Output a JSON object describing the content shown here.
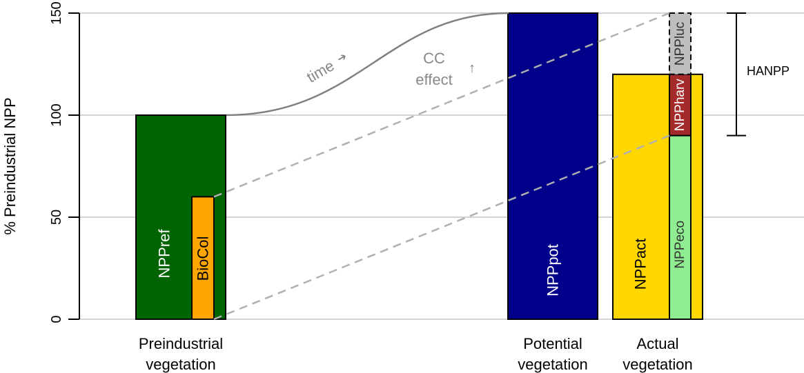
{
  "chart_data": {
    "type": "bar",
    "ylabel": "% Preindustrial NPP",
    "ylim": [
      0,
      150
    ],
    "yticks": [
      0,
      50,
      100,
      150
    ],
    "grid": true,
    "categories": [
      [
        "Preindustrial",
        "vegetation"
      ],
      [
        "Potential",
        "vegetation"
      ],
      [
        "Actual",
        "vegetation"
      ]
    ],
    "bars": [
      {
        "name": "NPPref",
        "group": 0,
        "value": 100,
        "color": "#006400",
        "label_color": "#ffffff"
      },
      {
        "name": "BioCol",
        "group": 0,
        "value": 60,
        "color": "#FFA500",
        "label_color": "#000000",
        "sub": true
      },
      {
        "name": "NPPpot",
        "group": 1,
        "value": 150,
        "color": "#00008B",
        "label_color": "#ffffff"
      },
      {
        "name": "NPPact",
        "group": 2,
        "value": 120,
        "color": "#FFD700",
        "label_color": "#000000"
      }
    ],
    "stack": [
      {
        "name": "NPPeco",
        "from": 0,
        "to": 90,
        "color": "#90EE90",
        "label_color": "#333333"
      },
      {
        "name": "NPPharv",
        "from": 90,
        "to": 120,
        "color": "#A52A2A",
        "label_color": "#ffffff"
      },
      {
        "name": "NPPluc",
        "from": 120,
        "to": 150,
        "color": "#BEBEBE",
        "label_color": "#333333",
        "dashed": true
      }
    ],
    "annotations": {
      "time": "time",
      "cc_effect": [
        "CC",
        "effect"
      ],
      "arrow": "➔",
      "arrow_up": "↑"
    },
    "bracket": {
      "name": "HANPP",
      "from": 90,
      "to": 150
    }
  }
}
